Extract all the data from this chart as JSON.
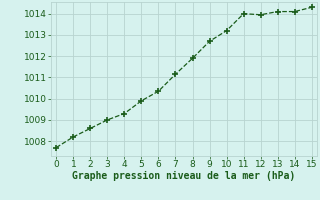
{
  "x": [
    0,
    1,
    2,
    3,
    4,
    5,
    6,
    7,
    8,
    9,
    10,
    11,
    12,
    13,
    14,
    15
  ],
  "y": [
    1007.7,
    1008.2,
    1008.6,
    1009.0,
    1009.3,
    1009.9,
    1010.35,
    1011.15,
    1011.9,
    1012.7,
    1013.2,
    1014.0,
    1013.95,
    1014.1,
    1014.1,
    1014.3
  ],
  "line_color": "#1a5c1a",
  "marker": "+",
  "marker_size": 4,
  "marker_lw": 1.2,
  "xlabel": "Graphe pression niveau de la mer (hPa)",
  "xlim": [
    -0.3,
    15.3
  ],
  "ylim": [
    1007.3,
    1014.55
  ],
  "yticks": [
    1008,
    1009,
    1010,
    1011,
    1012,
    1013,
    1014
  ],
  "xticks": [
    0,
    1,
    2,
    3,
    4,
    5,
    6,
    7,
    8,
    9,
    10,
    11,
    12,
    13,
    14,
    15
  ],
  "bg_color": "#d6f2ee",
  "grid_color": "#b8d4d0",
  "label_color": "#1a5c1a",
  "tick_color": "#1a5c1a",
  "xlabel_fontsize": 7,
  "tick_fontsize": 6.5
}
